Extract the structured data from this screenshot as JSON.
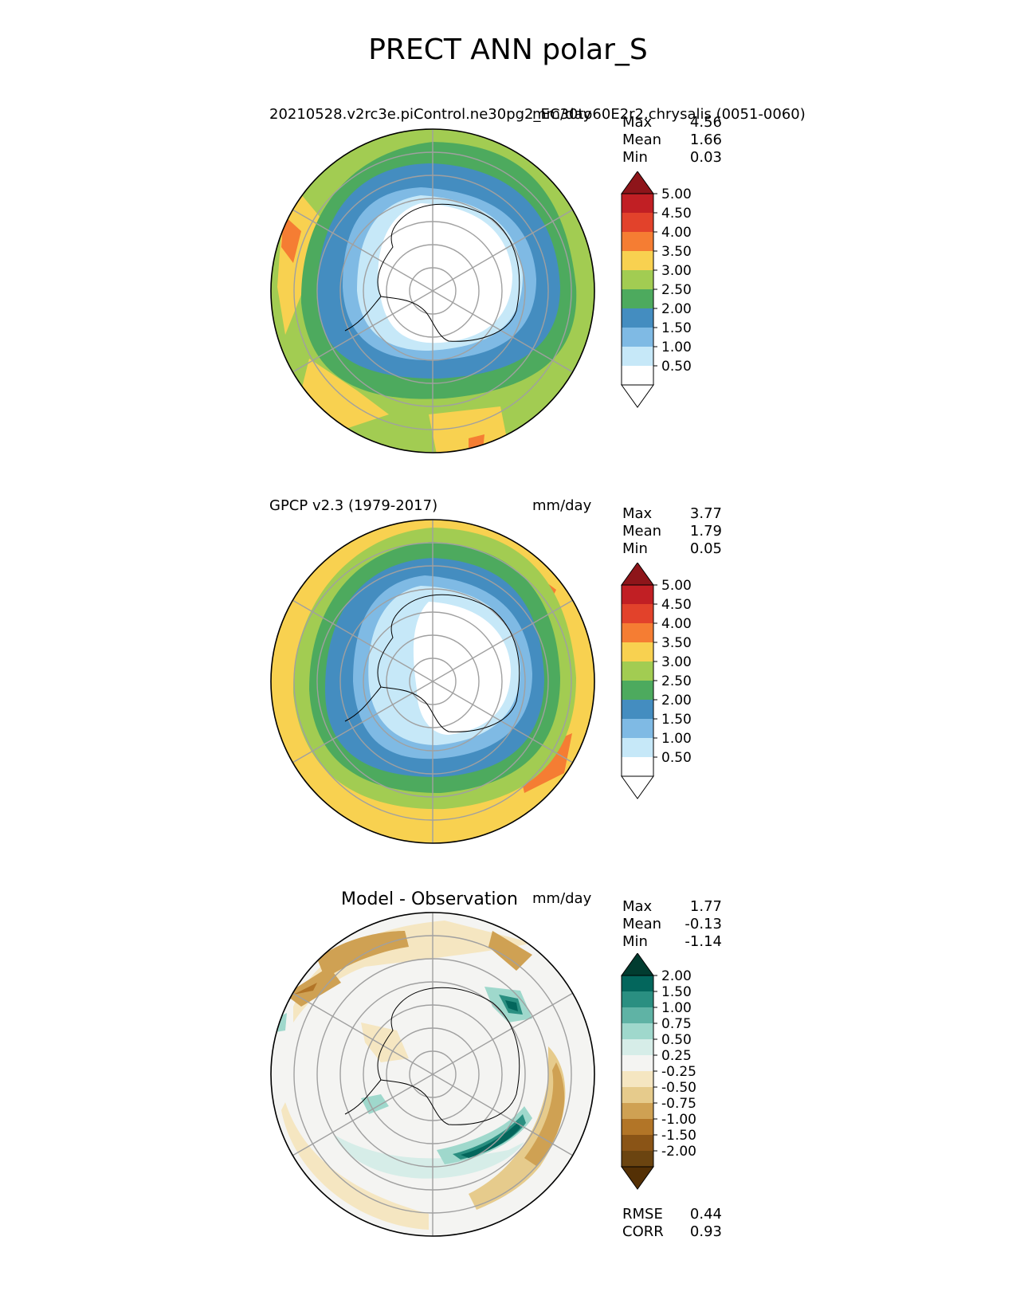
{
  "main_title": "PRECT ANN polar_S",
  "panels": [
    {
      "id": "test",
      "title_left": "20210528.v2rc3e.piControl.ne30pg2_EC30to60E2r2.chrysalis (0051-0060)",
      "title_right": "mm/day",
      "stats": [
        {
          "label": "Max",
          "value": "4.56"
        },
        {
          "label": "Mean",
          "value": "1.66"
        },
        {
          "label": "Min",
          "value": "0.03"
        }
      ],
      "colorbar": {
        "colors": [
          "#ffffff",
          "#c6e8f8",
          "#7fbae4",
          "#448dc0",
          "#4daa5e",
          "#a2cc52",
          "#f8d150",
          "#f57d33",
          "#e2422b",
          "#c11f24"
        ],
        "over_color": "#8e151a",
        "ticks": [
          "0.50",
          "1.00",
          "1.50",
          "2.00",
          "2.50",
          "3.00",
          "3.50",
          "4.00",
          "4.50",
          "5.00"
        ]
      },
      "field_levels": {
        "description_rings": [
          {
            "r_max": 0.28,
            "value_range": "0-0.5"
          },
          {
            "r_max": 0.42,
            "value_range": "0.5-1.0"
          },
          {
            "r_max": 0.52,
            "value_range": "1.0-1.5"
          },
          {
            "r_max": 0.68,
            "value_range": "1.5-2.0"
          },
          {
            "r_max": 0.82,
            "value_range": "2.0-2.5"
          },
          {
            "r_max": 1.0,
            "value_range": "2.5-3.5"
          }
        ]
      }
    },
    {
      "id": "ref",
      "title_left": "GPCP v2.3 (1979-2017)",
      "title_right": "mm/day",
      "stats": [
        {
          "label": "Max",
          "value": "3.77"
        },
        {
          "label": "Mean",
          "value": "1.79"
        },
        {
          "label": "Min",
          "value": "0.05"
        }
      ],
      "colorbar": {
        "colors": [
          "#ffffff",
          "#c6e8f8",
          "#7fbae4",
          "#448dc0",
          "#4daa5e",
          "#a2cc52",
          "#f8d150",
          "#f57d33",
          "#e2422b",
          "#c11f24"
        ],
        "over_color": "#8e151a",
        "ticks": [
          "0.50",
          "1.00",
          "1.50",
          "2.00",
          "2.50",
          "3.00",
          "3.50",
          "4.00",
          "4.50",
          "5.00"
        ]
      }
    },
    {
      "id": "diff",
      "title_center": "Model - Observation",
      "title_right": "mm/day",
      "stats": [
        {
          "label": "Max",
          "value": "1.77"
        },
        {
          "label": "Mean",
          "value": "-0.13"
        },
        {
          "label": "Min",
          "value": "-1.14"
        }
      ],
      "colorbar": {
        "colors": [
          "#6b4410",
          "#8a5416",
          "#b27527",
          "#cfa153",
          "#e6cb8c",
          "#f5e6c1",
          "#f4f4f2",
          "#d6ede8",
          "#9fd8cc",
          "#5fb3a5",
          "#2a8f81",
          "#03665c"
        ],
        "over_color": "#013c30",
        "under_color": "#543005",
        "ticks": [
          "-2.00",
          "-1.50",
          "-1.00",
          "-0.75",
          "-0.50",
          "-0.25",
          "0.25",
          "0.50",
          "0.75",
          "1.00",
          "1.50",
          "2.00"
        ]
      },
      "metrics": [
        {
          "label": "RMSE",
          "value": "0.44"
        },
        {
          "label": "CORR",
          "value": "0.93"
        }
      ]
    }
  ]
}
